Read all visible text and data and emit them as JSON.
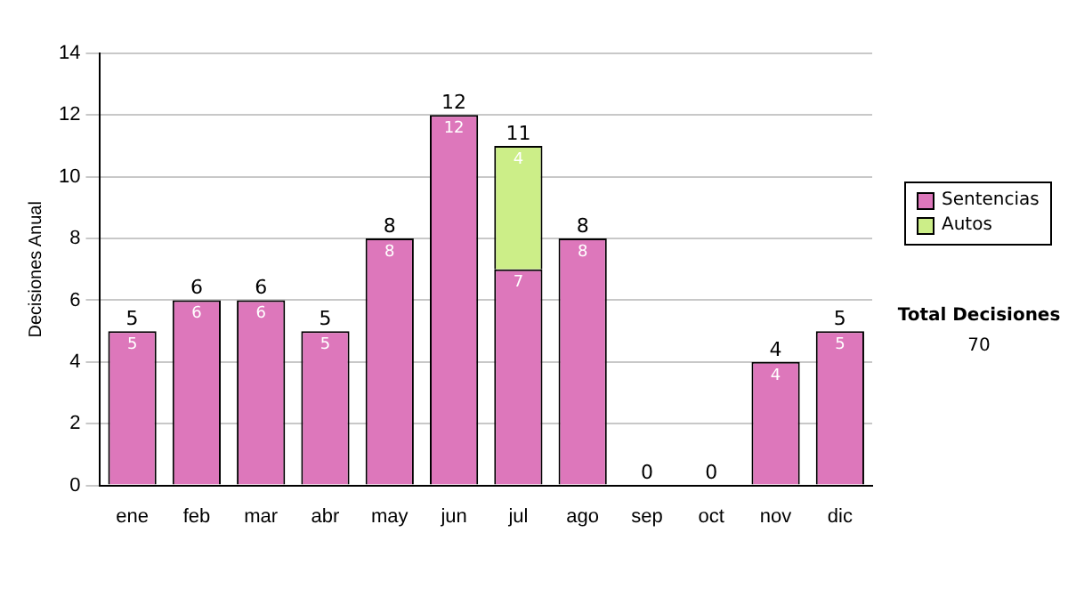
{
  "chart_data": {
    "type": "bar",
    "stacked": true,
    "ylabel": "Decisiones Anual",
    "categories": [
      "ene",
      "feb",
      "mar",
      "abr",
      "may",
      "jun",
      "jul",
      "ago",
      "sep",
      "oct",
      "nov",
      "dic"
    ],
    "series": [
      {
        "name": "Sentencias",
        "color": "#dd77bb",
        "values": [
          5,
          6,
          6,
          5,
          8,
          12,
          7,
          8,
          0,
          0,
          4,
          5
        ],
        "value_labels": [
          "5",
          "6",
          "6",
          "5",
          "8",
          "12",
          "7",
          "8",
          null,
          null,
          "4",
          "5"
        ]
      },
      {
        "name": "Autos",
        "color": "#ccee88",
        "values": [
          0,
          0,
          0,
          0,
          0,
          0,
          4,
          0,
          0,
          0,
          0,
          0
        ],
        "value_labels": [
          null,
          null,
          null,
          null,
          null,
          null,
          "4",
          null,
          null,
          null,
          null,
          null
        ]
      }
    ],
    "totals": [
      "5",
      "6",
      "6",
      "5",
      "8",
      "12",
      "11",
      "8",
      "0",
      "0",
      "4",
      "5"
    ],
    "ylim": [
      0,
      14
    ],
    "yticks": [
      0,
      2,
      4,
      6,
      8,
      10,
      12,
      14
    ],
    "grid": "y",
    "legend": "right",
    "annotations": [
      "Total Decisiones",
      "70"
    ]
  }
}
